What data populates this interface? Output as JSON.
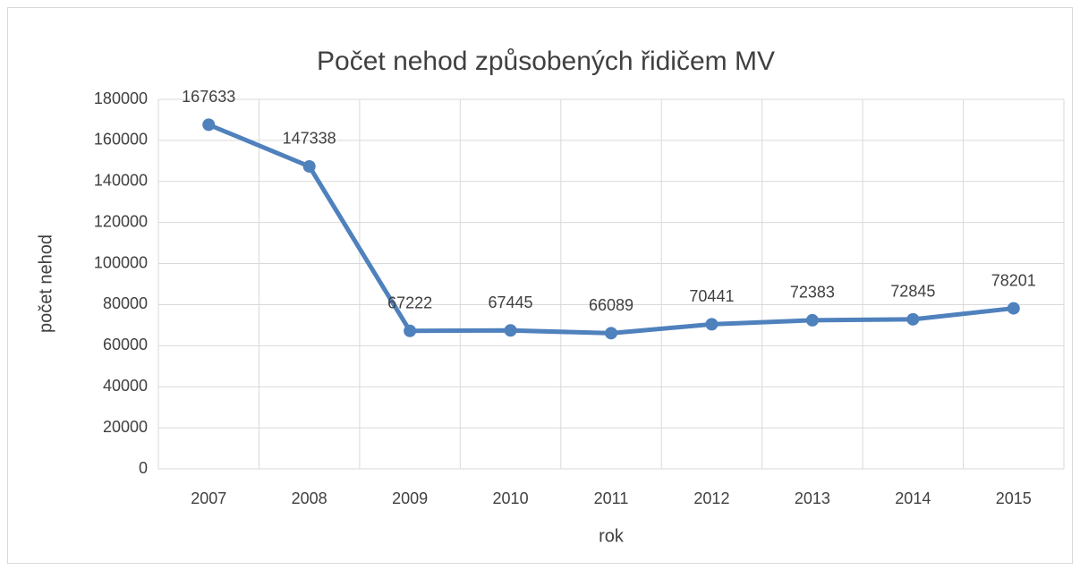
{
  "chart_data": {
    "type": "line",
    "title": "Počet nehod způsobených řidičem MV",
    "x_label": "rok",
    "y_label": "počet nehod",
    "categories": [
      "2007",
      "2008",
      "2009",
      "2010",
      "2011",
      "2012",
      "2013",
      "2014",
      "2015"
    ],
    "series": [
      {
        "name": "počet nehod",
        "color": "#4f81bd",
        "values": [
          167633,
          147338,
          67222,
          67445,
          66089,
          70441,
          72383,
          72845,
          78201
        ]
      }
    ],
    "ylim": [
      0,
      180000
    ],
    "yticks": [
      0,
      20000,
      40000,
      60000,
      80000,
      100000,
      120000,
      140000,
      160000,
      180000
    ],
    "grid": true
  }
}
